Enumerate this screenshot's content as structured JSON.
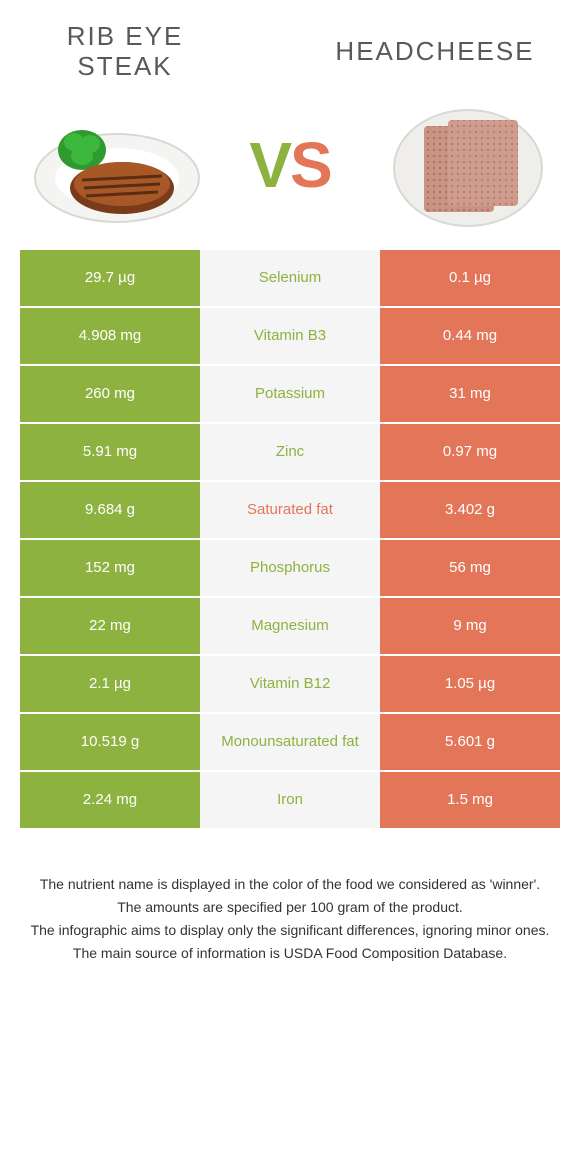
{
  "left_title": "RIB EYE STEAK",
  "right_title": "HEADCHEESE",
  "vs_v": "V",
  "vs_s": "S",
  "colors": {
    "left": "#8eb23f",
    "right": "#e37658",
    "mid_bg": "#f5f5f5"
  },
  "rows": [
    {
      "left": "29.7 µg",
      "label": "Selenium",
      "right": "0.1 µg",
      "winner": "left"
    },
    {
      "left": "4.908 mg",
      "label": "Vitamin B3",
      "right": "0.44 mg",
      "winner": "left"
    },
    {
      "left": "260 mg",
      "label": "Potassium",
      "right": "31 mg",
      "winner": "left"
    },
    {
      "left": "5.91 mg",
      "label": "Zinc",
      "right": "0.97 mg",
      "winner": "left"
    },
    {
      "left": "9.684 g",
      "label": "Saturated fat",
      "right": "3.402 g",
      "winner": "right"
    },
    {
      "left": "152 mg",
      "label": "Phosphorus",
      "right": "56 mg",
      "winner": "left"
    },
    {
      "left": "22 mg",
      "label": "Magnesium",
      "right": "9 mg",
      "winner": "left"
    },
    {
      "left": "2.1 µg",
      "label": "Vitamin B12",
      "right": "1.05 µg",
      "winner": "left"
    },
    {
      "left": "10.519 g",
      "label": "Monounsaturated fat",
      "right": "5.601 g",
      "winner": "left"
    },
    {
      "left": "2.24 mg",
      "label": "Iron",
      "right": "1.5 mg",
      "winner": "left"
    }
  ],
  "footer": [
    "The nutrient name is displayed in the color of the food we considered as 'winner'.",
    "The amounts are specified per 100 gram of the product.",
    "The infographic aims to display only the significant differences, ignoring minor ones.",
    "The main source of information is USDA Food Composition Database."
  ]
}
